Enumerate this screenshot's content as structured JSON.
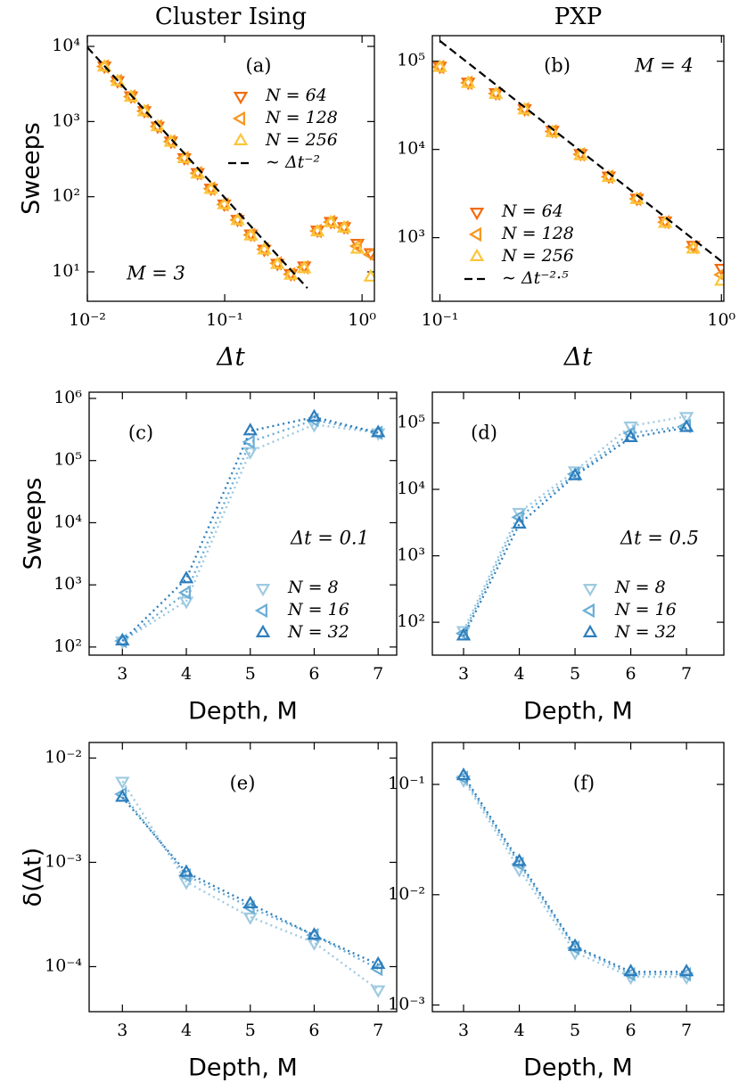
{
  "chart_data": [
    {
      "type": "line",
      "title": "Cluster Ising",
      "panel_label": "(a)",
      "annotation": "M = 3",
      "xlabel": "Δt",
      "ylabel": "Sweeps",
      "xlog": true,
      "ylog": true,
      "xlim": [
        0.01,
        1.23
      ],
      "ylim": [
        4.06,
        13900
      ],
      "xticks": [
        {
          "value": 0.01,
          "label": "10⁻²"
        },
        {
          "value": 0.1,
          "label": "10⁻¹"
        },
        {
          "value": 1,
          "label": "10⁰"
        }
      ],
      "yticks": [
        {
          "value": 10,
          "label": "10¹"
        },
        {
          "value": 100,
          "label": "10²"
        },
        {
          "value": 1000,
          "label": "10³"
        },
        {
          "value": 10000,
          "label": "10⁴"
        }
      ],
      "x": [
        0.0133,
        0.0166,
        0.0208,
        0.026,
        0.0325,
        0.0406,
        0.0508,
        0.0635,
        0.0794,
        0.0992,
        0.124,
        0.155,
        0.194,
        0.242,
        0.303,
        0.379,
        0.473,
        0.592,
        0.74,
        0.925,
        1.156
      ],
      "legend": "upper right",
      "series": [
        {
          "name": "N = 64",
          "color": "#f26b0f",
          "marker": "v",
          "linestyle": "none",
          "values": [
            5500,
            3500,
            2200,
            1400,
            870,
            550,
            330,
            210,
            130,
            80,
            50,
            32,
            20,
            13,
            9.5,
            12,
            36,
            47,
            40,
            24,
            18
          ]
        },
        {
          "name": "N = 128",
          "color": "#f7961e",
          "marker": "<",
          "linestyle": "none",
          "values": [
            5400,
            3450,
            2150,
            1380,
            860,
            540,
            325,
            205,
            128,
            79,
            49,
            31,
            20,
            13,
            9.3,
            11.5,
            35,
            46,
            39,
            22,
            17
          ]
        },
        {
          "name": "N = 256",
          "color": "#fbc53a",
          "marker": "^",
          "linestyle": "none",
          "values": [
            5300,
            3400,
            2100,
            1350,
            850,
            530,
            320,
            200,
            125,
            78,
            48,
            30,
            19.5,
            12.5,
            9,
            11,
            34,
            45,
            38,
            20,
            8.5
          ]
        },
        {
          "name": "∼ Δt⁻²",
          "color": "#000000",
          "linestyle": "dashed",
          "x": [
            0.01,
            0.4
          ],
          "values": [
            9730,
            6.08
          ]
        }
      ]
    },
    {
      "type": "line",
      "title": "PXP",
      "panel_label": "(b)",
      "annotation": "M = 4",
      "xlabel": "Δt",
      "xlog": true,
      "ylog": true,
      "xlim": [
        0.094,
        1.02
      ],
      "ylim": [
        190,
        195000
      ],
      "xticks": [
        {
          "value": 0.1,
          "label": "10⁻¹"
        },
        {
          "value": 1,
          "label": "10⁰"
        }
      ],
      "yticks": [
        {
          "value": 1000,
          "label": "10³"
        },
        {
          "value": 10000,
          "label": "10⁴"
        },
        {
          "value": 100000,
          "label": "10⁵"
        }
      ],
      "x": [
        0.1,
        0.126,
        0.158,
        0.2,
        0.251,
        0.316,
        0.398,
        0.501,
        0.631,
        0.794,
        1.0
      ],
      "legend": "lower left",
      "series": [
        {
          "name": "N = 64",
          "color": "#f26b0f",
          "marker": "v",
          "linestyle": "none",
          "values": [
            88000,
            58000,
            44000,
            29000,
            16500,
            9000,
            5000,
            2800,
            1550,
            820,
            450
          ]
        },
        {
          "name": "N = 128",
          "color": "#f7961e",
          "marker": "<",
          "linestyle": "none",
          "values": [
            86000,
            57000,
            43000,
            28500,
            16000,
            8800,
            4900,
            2750,
            1500,
            780,
            380
          ]
        },
        {
          "name": "N = 256",
          "color": "#fbc53a",
          "marker": "^",
          "linestyle": "none",
          "values": [
            85000,
            56000,
            42000,
            28000,
            15500,
            8500,
            4800,
            2700,
            1450,
            740,
            320
          ]
        },
        {
          "name": "∼ Δt⁻²·⁵",
          "color": "#000000",
          "linestyle": "dashed",
          "x": [
            0.1,
            1.0
          ],
          "values": [
            170000,
            540
          ]
        }
      ]
    },
    {
      "type": "line",
      "panel_label": "(c)",
      "annotation": "Δt = 0.1",
      "xlabel": "Depth, M",
      "ylabel": "Sweeps",
      "xlog": false,
      "ylog": true,
      "xlim": [
        2.48,
        7.29
      ],
      "ylim": [
        74,
        1260000
      ],
      "xticks": [
        3,
        4,
        5,
        6,
        7
      ],
      "yticks": [
        {
          "value": 100,
          "label": "10²"
        },
        {
          "value": 1000,
          "label": "10³"
        },
        {
          "value": 10000,
          "label": "10⁴"
        },
        {
          "value": 100000,
          "label": "10⁵"
        },
        {
          "value": 1000000,
          "label": "10⁶"
        }
      ],
      "x": [
        3,
        4,
        5,
        6,
        7
      ],
      "legend": "lower right",
      "series": [
        {
          "name": "N = 8",
          "color": "#9ecae1",
          "marker": "v",
          "linestyle": "dotted",
          "values": [
            125,
            550,
            140000,
            380000,
            280000
          ]
        },
        {
          "name": "N = 16",
          "color": "#6aaed6",
          "marker": "<",
          "linestyle": "dotted",
          "values": [
            125,
            750,
            200000,
            450000,
            280000
          ]
        },
        {
          "name": "N = 32",
          "color": "#2e7ebc",
          "marker": "^",
          "linestyle": "dotted",
          "values": [
            125,
            1250,
            300000,
            500000,
            280000
          ]
        }
      ]
    },
    {
      "type": "line",
      "panel_label": "(d)",
      "annotation": "Δt = 0.5",
      "xlabel": "Depth, M",
      "xlog": false,
      "ylog": true,
      "xlim": [
        2.44,
        7.67
      ],
      "ylim": [
        32,
        290000
      ],
      "xticks": [
        3,
        4,
        5,
        6,
        7
      ],
      "yticks": [
        {
          "value": 100,
          "label": "10²"
        },
        {
          "value": 1000,
          "label": "10³"
        },
        {
          "value": 10000,
          "label": "10⁴"
        },
        {
          "value": 100000,
          "label": "10⁵"
        }
      ],
      "x": [
        3,
        4,
        5,
        6,
        7
      ],
      "legend": "lower right",
      "series": [
        {
          "name": "N = 8",
          "color": "#9ecae1",
          "marker": "v",
          "linestyle": "dotted",
          "values": [
            75,
            4500,
            19000,
            90000,
            125000
          ]
        },
        {
          "name": "N = 16",
          "color": "#6aaed6",
          "marker": "<",
          "linestyle": "dotted",
          "values": [
            68,
            3800,
            17000,
            70000,
            90000
          ]
        },
        {
          "name": "N = 32",
          "color": "#2e7ebc",
          "marker": "^",
          "linestyle": "dotted",
          "values": [
            62,
            3000,
            16000,
            60000,
            85000
          ]
        }
      ]
    },
    {
      "type": "line",
      "panel_label": "(e)",
      "xlabel": "Depth, M",
      "ylabel": "δ(Δt)",
      "xlog": false,
      "ylog": true,
      "xlim": [
        2.48,
        7.29
      ],
      "ylim": [
        3.7e-05,
        0.0141
      ],
      "xticks": [
        3,
        4,
        5,
        6,
        7
      ],
      "yticks": [
        {
          "value": 0.0001,
          "label": "10⁻⁴"
        },
        {
          "value": 0.001,
          "label": "10⁻³"
        },
        {
          "value": 0.01,
          "label": "10⁻²"
        }
      ],
      "x": [
        3,
        4,
        5,
        6,
        7
      ],
      "series": [
        {
          "color": "#9ecae1",
          "marker": "v",
          "linestyle": "dotted",
          "values": [
            0.006,
            0.00065,
            0.0003,
            0.00017,
            6e-05
          ]
        },
        {
          "color": "#6aaed6",
          "marker": "<",
          "linestyle": "dotted",
          "values": [
            0.0045,
            0.00075,
            0.00037,
            0.0002,
            9.5e-05
          ]
        },
        {
          "color": "#2e7ebc",
          "marker": "^",
          "linestyle": "dotted",
          "values": [
            0.0042,
            0.0008,
            0.0004,
            0.0002,
            0.000105
          ]
        }
      ]
    },
    {
      "type": "line",
      "panel_label": "(f)",
      "xlabel": "Depth, M",
      "xlog": false,
      "ylog": true,
      "xlim": [
        2.44,
        7.67
      ],
      "ylim": [
        0.00087,
        0.24
      ],
      "xticks": [
        3,
        4,
        5,
        6,
        7
      ],
      "yticks": [
        {
          "value": 0.001,
          "label": "10⁻³"
        },
        {
          "value": 0.01,
          "label": "10⁻²"
        },
        {
          "value": 0.1,
          "label": "10⁻¹"
        }
      ],
      "x": [
        3,
        4,
        5,
        6,
        7
      ],
      "series": [
        {
          "color": "#9ecae1",
          "marker": "v",
          "linestyle": "dotted",
          "values": [
            0.11,
            0.017,
            0.003,
            0.0018,
            0.0018
          ]
        },
        {
          "color": "#6aaed6",
          "marker": "<",
          "linestyle": "dotted",
          "values": [
            0.115,
            0.019,
            0.0033,
            0.0019,
            0.0019
          ]
        },
        {
          "color": "#2e7ebc",
          "marker": "^",
          "linestyle": "dotted",
          "values": [
            0.12,
            0.02,
            0.0034,
            0.002,
            0.002
          ]
        }
      ]
    }
  ]
}
